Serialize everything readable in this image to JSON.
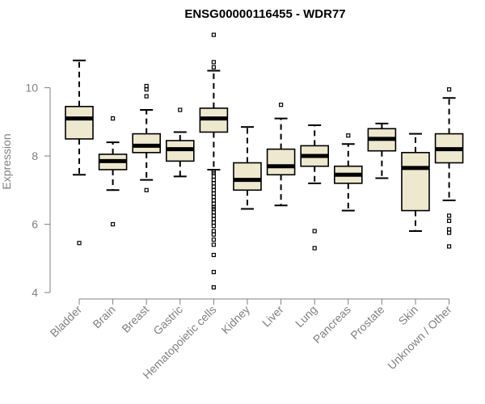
{
  "chart_data": {
    "type": "boxplot",
    "title": "ENSG00000116455 - WDR77",
    "xlabel": "",
    "ylabel": "Expression",
    "ylim": [
      4,
      11.6
    ],
    "yticks": [
      4,
      6,
      8,
      10
    ],
    "box_fill": "#EEE8CF",
    "categories": [
      {
        "label": "Bladder",
        "whisker_low": 7.45,
        "q1": 8.5,
        "median": 9.1,
        "q3": 9.45,
        "whisker_high": 10.8,
        "outliers": [
          5.45
        ]
      },
      {
        "label": "Brain",
        "whisker_low": 7.0,
        "q1": 7.6,
        "median": 7.85,
        "q3": 8.05,
        "whisker_high": 8.4,
        "outliers": [
          6.0,
          9.1
        ]
      },
      {
        "label": "Breast",
        "whisker_low": 7.3,
        "q1": 8.1,
        "median": 8.3,
        "q3": 8.65,
        "whisker_high": 9.35,
        "outliers": [
          7.0,
          9.75,
          9.95,
          10.05
        ]
      },
      {
        "label": "Gastric",
        "whisker_low": 7.4,
        "q1": 7.85,
        "median": 8.2,
        "q3": 8.45,
        "whisker_high": 8.7,
        "outliers": [
          9.35
        ]
      },
      {
        "label": "Hematopoietic cells",
        "whisker_low": 7.6,
        "q1": 8.7,
        "median": 9.1,
        "q3": 9.4,
        "whisker_high": 10.5,
        "outliers": [
          11.55,
          10.75,
          10.6,
          4.15,
          4.6,
          5.1,
          5.4,
          5.55,
          5.7,
          5.8,
          5.95,
          6.05,
          6.15,
          6.25,
          6.35,
          6.45,
          6.5,
          6.6,
          6.7,
          6.8,
          6.9,
          7.0,
          7.1,
          7.2,
          7.3,
          7.4,
          7.5,
          7.55
        ]
      },
      {
        "label": "Kidney",
        "whisker_low": 6.45,
        "q1": 7.0,
        "median": 7.3,
        "q3": 7.8,
        "whisker_high": 8.85,
        "outliers": []
      },
      {
        "label": "Liver",
        "whisker_low": 6.55,
        "q1": 7.45,
        "median": 7.7,
        "q3": 8.2,
        "whisker_high": 9.1,
        "outliers": [
          9.5
        ]
      },
      {
        "label": "Lung",
        "whisker_low": 7.2,
        "q1": 7.7,
        "median": 8.0,
        "q3": 8.3,
        "whisker_high": 8.9,
        "outliers": [
          5.3,
          5.8
        ]
      },
      {
        "label": "Pancreas",
        "whisker_low": 6.4,
        "q1": 7.2,
        "median": 7.45,
        "q3": 7.7,
        "whisker_high": 8.35,
        "outliers": [
          8.6
        ]
      },
      {
        "label": "Prostate",
        "whisker_low": 7.35,
        "q1": 8.15,
        "median": 8.5,
        "q3": 8.8,
        "whisker_high": 8.95,
        "outliers": []
      },
      {
        "label": "Skin",
        "whisker_low": 5.8,
        "q1": 6.4,
        "median": 7.65,
        "q3": 8.1,
        "whisker_high": 8.65,
        "outliers": []
      },
      {
        "label": "Unknown / Other",
        "whisker_low": 6.7,
        "q1": 7.8,
        "median": 8.2,
        "q3": 8.65,
        "whisker_high": 9.7,
        "outliers": [
          9.95,
          6.25,
          6.1,
          5.85,
          5.75,
          5.35
        ]
      }
    ]
  }
}
